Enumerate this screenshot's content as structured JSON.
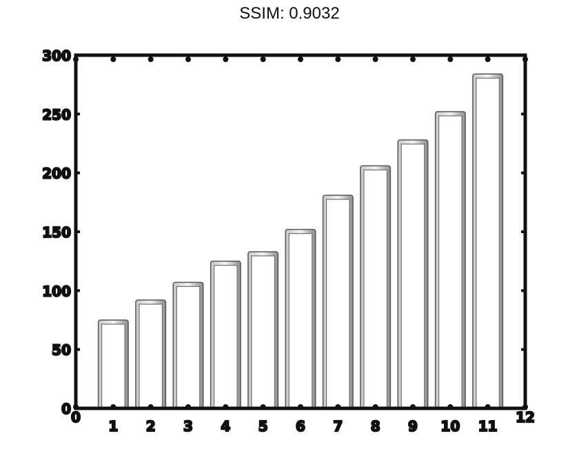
{
  "title": "SSIM: 0.9032",
  "chart_data": {
    "type": "bar",
    "title": "SSIM: 0.9032",
    "xlabel": "",
    "ylabel": "",
    "categories": [
      "1",
      "2",
      "3",
      "4",
      "5",
      "6",
      "7",
      "8",
      "9",
      "10",
      "11"
    ],
    "values": [
      75,
      92,
      107,
      125,
      133,
      152,
      181,
      206,
      228,
      252,
      284
    ],
    "xlim": [
      0,
      12
    ],
    "ylim": [
      0,
      300
    ],
    "x_ticks": [
      "0",
      "1",
      "2",
      "3",
      "4",
      "5",
      "6",
      "7",
      "8",
      "9",
      "10",
      "11",
      "12"
    ],
    "y_ticks": [
      "0",
      "50",
      "100",
      "150",
      "200",
      "250",
      "300"
    ],
    "y_tick_values": [
      0,
      50,
      100,
      150,
      200,
      250,
      300
    ],
    "grid": false,
    "bar_fill": "#ffffff",
    "bar_edge": "#9a9a9a",
    "axis_color": "#111111"
  }
}
